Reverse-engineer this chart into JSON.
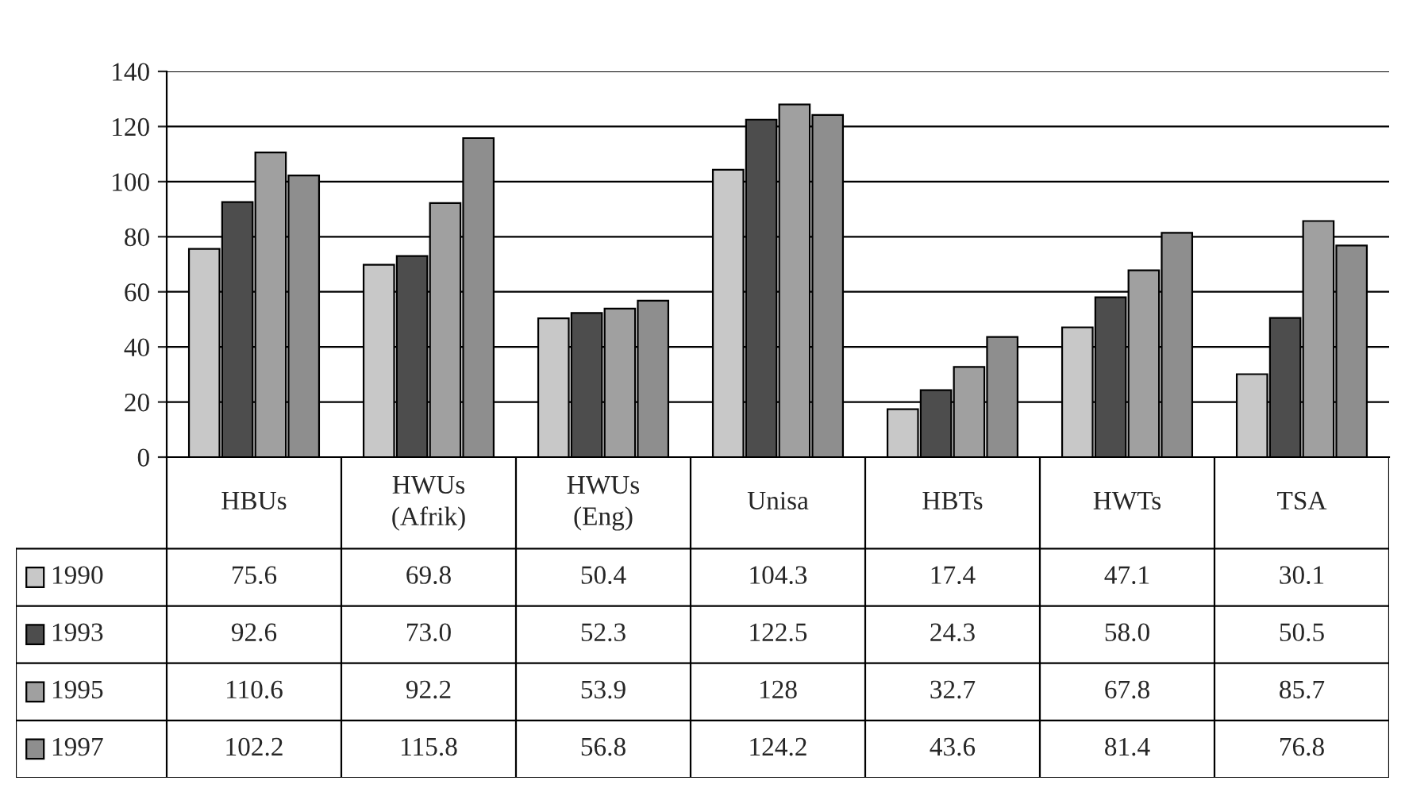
{
  "chart_data": {
    "type": "bar",
    "categories": [
      "HBUs",
      "HWUs\n(Afrik)",
      "HWUs\n(Eng)",
      "Unisa",
      "HBTs",
      "HWTs",
      "TSA"
    ],
    "series": [
      {
        "name": "1990",
        "color": "#c8c8c8",
        "values": [
          75.6,
          69.8,
          50.4,
          104.3,
          17.4,
          47.1,
          30.1
        ],
        "value_labels": [
          "75.6",
          "69.8",
          "50.4",
          "104.3",
          "17.4",
          "47.1",
          "30.1"
        ]
      },
      {
        "name": "1993",
        "color": "#4d4d4d",
        "values": [
          92.6,
          73.0,
          52.3,
          122.5,
          24.3,
          58.0,
          50.5
        ],
        "value_labels": [
          "92.6",
          "73.0",
          "52.3",
          "122.5",
          "24.3",
          "58.0",
          "50.5"
        ]
      },
      {
        "name": "1995",
        "color": "#a0a0a0",
        "values": [
          110.6,
          92.2,
          53.9,
          128,
          32.7,
          67.8,
          85.7
        ],
        "value_labels": [
          "110.6",
          "92.2",
          "53.9",
          "128",
          "32.7",
          "67.8",
          "85.7"
        ]
      },
      {
        "name": "1997",
        "color": "#8e8e8e",
        "values": [
          102.2,
          115.8,
          56.8,
          124.2,
          43.6,
          81.4,
          76.8
        ],
        "value_labels": [
          "102.2",
          "115.8",
          "56.8",
          "124.2",
          "43.6",
          "81.4",
          "76.8"
        ]
      }
    ],
    "ylim": [
      0,
      140
    ],
    "yticks": [
      0,
      20,
      40,
      60,
      80,
      100,
      120,
      140
    ],
    "grid": "y",
    "legend": "bottom left"
  }
}
